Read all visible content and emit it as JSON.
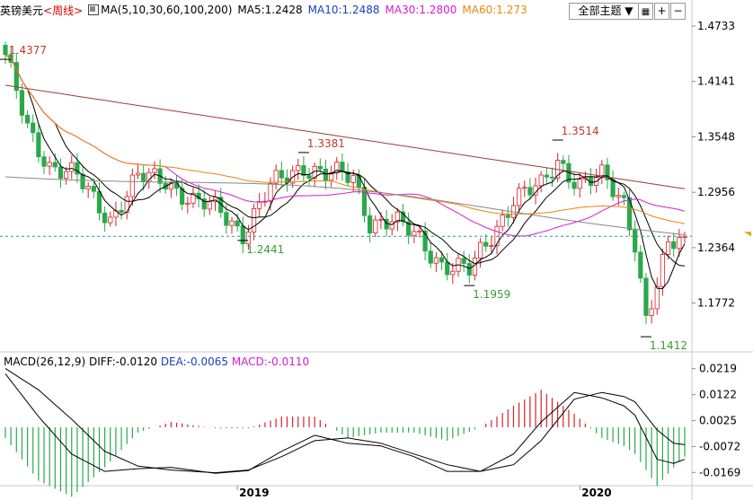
{
  "header": {
    "pair": "英镑美元",
    "period": "<周线>",
    "ma_label": "MA(5,10,30,60,100,200)",
    "ma5": "MA5:1.2428",
    "ma10": "MA10:1.2488",
    "ma30": "MA30:1.2800",
    "ma60": "MA60:1.273",
    "theme_select": "全部主题"
  },
  "colors": {
    "up": "#d8222a",
    "down": "#2aa84a",
    "ma5": "#000000",
    "ma10": "#000000",
    "ma30": "#d41cd4",
    "ma60": "#e8870a",
    "ma100": "#888888",
    "ma200": "#a23a3a",
    "dea": "#000000",
    "diff": "#000000",
    "axis": "#c8c8c8",
    "dash": "#2a9a8a"
  },
  "chart_data": [
    {
      "type": "candlestick",
      "title": "英镑美元 <周线>",
      "y_ticks": [
        "1.4733",
        "1.4141",
        "1.3548",
        "1.2956",
        "1.2364",
        "1.1772"
      ],
      "ylim": [
        1.125,
        1.48
      ],
      "x_labels": [
        "2019",
        "2020"
      ],
      "current_price": 1.2485,
      "annotations": [
        {
          "label": "1.4377",
          "value": 1.4377,
          "bar": 0
        },
        {
          "label": "1.3381",
          "value": 1.3381,
          "bar": 54
        },
        {
          "label": "1.2441",
          "value": 1.2441,
          "bar": 43
        },
        {
          "label": "1.3514",
          "value": 1.3514,
          "bar": 100
        },
        {
          "label": "1.1959",
          "value": 1.1959,
          "bar": 84
        },
        {
          "label": "1.1412",
          "value": 1.1412,
          "bar": 116
        }
      ],
      "ohlc_keypoints": [
        [
          0,
          1.4377
        ],
        [
          4,
          1.365
        ],
        [
          8,
          1.325
        ],
        [
          13,
          1.31
        ],
        [
          19,
          1.268
        ],
        [
          24,
          1.31
        ],
        [
          29,
          1.31
        ],
        [
          34,
          1.285
        ],
        [
          39,
          1.275
        ],
        [
          43,
          1.253
        ],
        [
          48,
          1.3
        ],
        [
          54,
          1.325
        ],
        [
          58,
          1.315
        ],
        [
          63,
          1.31
        ],
        [
          66,
          1.265
        ],
        [
          70,
          1.265
        ],
        [
          75,
          1.245
        ],
        [
          79,
          1.22
        ],
        [
          84,
          1.21
        ],
        [
          88,
          1.25
        ],
        [
          92,
          1.29
        ],
        [
          97,
          1.3
        ],
        [
          100,
          1.33
        ],
        [
          104,
          1.305
        ],
        [
          108,
          1.31
        ],
        [
          112,
          1.285
        ],
        [
          114,
          1.245
        ],
        [
          116,
          1.16
        ],
        [
          118,
          1.195
        ],
        [
          120,
          1.235
        ],
        [
          122,
          1.245
        ],
        [
          123,
          1.2485
        ]
      ],
      "series": [
        {
          "name": "MA5",
          "value": 1.2428
        },
        {
          "name": "MA10",
          "value": 1.2488
        },
        {
          "name": "MA30",
          "value": 1.28
        },
        {
          "name": "MA60",
          "value": 1.273
        }
      ]
    },
    {
      "type": "bar",
      "title": "MACD(26,12,9)",
      "diff_label": "DIFF:-0.0120",
      "dea_label": "DEA:-0.0065",
      "macd_label": "MACD:-0.0110",
      "y_ticks": [
        "0.0219",
        "0.0122",
        "0.0025",
        "-0.0072",
        "-0.0169"
      ],
      "ylim": [
        -0.0215,
        0.0245
      ],
      "diff_keypoints": [
        [
          0,
          0.02
        ],
        [
          6,
          0.004
        ],
        [
          12,
          -0.01
        ],
        [
          18,
          -0.0165
        ],
        [
          24,
          -0.0155
        ],
        [
          30,
          -0.015
        ],
        [
          38,
          -0.0172
        ],
        [
          44,
          -0.0162
        ],
        [
          50,
          -0.009
        ],
        [
          56,
          -0.003
        ],
        [
          62,
          -0.006
        ],
        [
          68,
          -0.007
        ],
        [
          74,
          -0.011
        ],
        [
          80,
          -0.0165
        ],
        [
          86,
          -0.0165
        ],
        [
          92,
          -0.01
        ],
        [
          97,
          0.002
        ],
        [
          103,
          0.013
        ],
        [
          108,
          0.011
        ],
        [
          112,
          0.008
        ],
        [
          114,
          0.0045
        ],
        [
          118,
          -0.012
        ],
        [
          121,
          -0.0135
        ],
        [
          123,
          -0.012
        ]
      ],
      "dea_keypoints": [
        [
          0,
          0.022
        ],
        [
          6,
          0.014
        ],
        [
          12,
          0.003
        ],
        [
          18,
          -0.009
        ],
        [
          24,
          -0.0145
        ],
        [
          30,
          -0.016
        ],
        [
          38,
          -0.017
        ],
        [
          44,
          -0.016
        ],
        [
          50,
          -0.011
        ],
        [
          56,
          -0.005
        ],
        [
          62,
          -0.004
        ],
        [
          68,
          -0.006
        ],
        [
          74,
          -0.01
        ],
        [
          80,
          -0.014
        ],
        [
          86,
          -0.0165
        ],
        [
          92,
          -0.014
        ],
        [
          97,
          -0.005
        ],
        [
          103,
          0.0105
        ],
        [
          108,
          0.013
        ],
        [
          112,
          0.0115
        ],
        [
          114,
          0.0095
        ],
        [
          118,
          -0.001
        ],
        [
          121,
          -0.006
        ],
        [
          123,
          -0.0065
        ]
      ]
    }
  ]
}
